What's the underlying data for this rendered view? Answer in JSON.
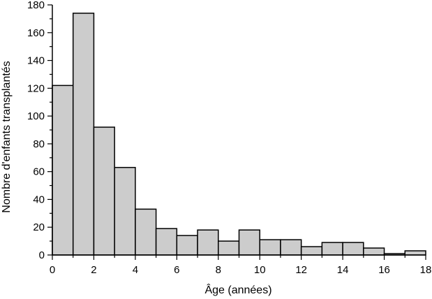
{
  "chart_data": {
    "type": "bar",
    "xlabel": "Âge (années)",
    "ylabel": "Nombre d'enfants transplantés",
    "xlim": [
      0,
      18
    ],
    "ylim": [
      0,
      180
    ],
    "x_ticks": [
      "0",
      "2",
      "4",
      "6",
      "8",
      "10",
      "12",
      "14",
      "16",
      "18"
    ],
    "y_ticks": [
      "0",
      "20",
      "40",
      "60",
      "80",
      "100",
      "120",
      "140",
      "160",
      "180"
    ],
    "bins": [
      {
        "start": 0,
        "end": 1,
        "value": 122
      },
      {
        "start": 1,
        "end": 2,
        "value": 174
      },
      {
        "start": 2,
        "end": 3,
        "value": 92
      },
      {
        "start": 3,
        "end": 4,
        "value": 63
      },
      {
        "start": 4,
        "end": 5,
        "value": 33
      },
      {
        "start": 5,
        "end": 6,
        "value": 19
      },
      {
        "start": 6,
        "end": 7,
        "value": 14
      },
      {
        "start": 7,
        "end": 8,
        "value": 18
      },
      {
        "start": 8,
        "end": 9,
        "value": 10
      },
      {
        "start": 9,
        "end": 10,
        "value": 18
      },
      {
        "start": 10,
        "end": 11,
        "value": 11
      },
      {
        "start": 11,
        "end": 12,
        "value": 11
      },
      {
        "start": 12,
        "end": 13,
        "value": 6
      },
      {
        "start": 13,
        "end": 14,
        "value": 9
      },
      {
        "start": 14,
        "end": 15,
        "value": 9
      },
      {
        "start": 15,
        "end": 16,
        "value": 5
      },
      {
        "start": 16,
        "end": 17,
        "value": 1
      },
      {
        "start": 17,
        "end": 18,
        "value": 3
      }
    ],
    "bar_fill": "#cccccc",
    "bar_stroke": "#000000",
    "grid": false
  }
}
